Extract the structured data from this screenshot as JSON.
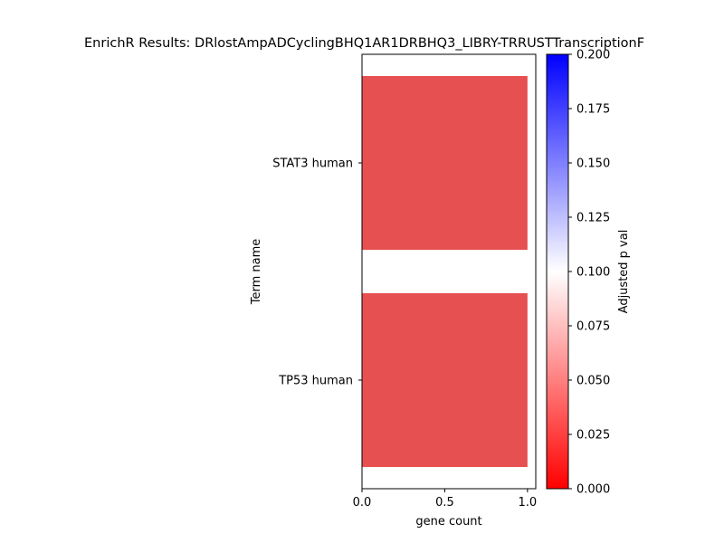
{
  "chart_data": {
    "type": "bar",
    "orientation": "horizontal",
    "title": "EnrichR Results: DRlostAmpADCyclingBHQ1AR1DRBHQ3_LIBRY-TRRUSTTranscriptionF",
    "xlabel": "gene count",
    "ylabel": "Term name",
    "categories": [
      "STAT3 human",
      "TP53 human"
    ],
    "values": [
      1,
      1
    ],
    "adjusted_p_values": [
      0.02,
      0.02
    ],
    "xlim": [
      0,
      1.05
    ],
    "x_ticks": [
      {
        "value": 0.0,
        "label": "0.0"
      },
      {
        "value": 0.5,
        "label": "0.5"
      },
      {
        "value": 1.0,
        "label": "1.0"
      }
    ],
    "bar_color": "#e65050",
    "grid": false,
    "colorbar": {
      "label": "Adjusted p val",
      "range": [
        0.0,
        0.2
      ],
      "colors": [
        "#ff0000",
        "#ffffff",
        "#0000ff"
      ],
      "ticks": [
        {
          "value": 0.0,
          "label": "0.000"
        },
        {
          "value": 0.025,
          "label": "0.025"
        },
        {
          "value": 0.05,
          "label": "0.050"
        },
        {
          "value": 0.075,
          "label": "0.075"
        },
        {
          "value": 0.1,
          "label": "0.100"
        },
        {
          "value": 0.125,
          "label": "0.125"
        },
        {
          "value": 0.15,
          "label": "0.150"
        },
        {
          "value": 0.175,
          "label": "0.175"
        },
        {
          "value": 0.2,
          "label": "0.200"
        }
      ]
    }
  }
}
